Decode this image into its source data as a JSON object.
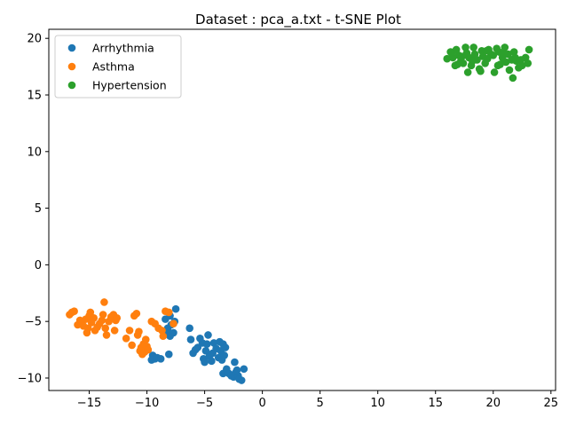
{
  "chart_data": {
    "type": "scatter",
    "title": "Dataset : pca_a.txt - t-SNE Plot",
    "xlabel": "",
    "ylabel": "",
    "xlim": [
      -18.5,
      25.4
    ],
    "ylim": [
      -11.1,
      20.8
    ],
    "xticks": [
      -15,
      -10,
      -5,
      0,
      5,
      10,
      15,
      20,
      25
    ],
    "yticks": [
      -10,
      -5,
      0,
      5,
      10,
      15,
      20
    ],
    "grid": false,
    "legend_position": "upper-left",
    "series": [
      {
        "name": "Arrhythmia",
        "color": "#1f77b4",
        "points": [
          [
            -9.5,
            -8.0
          ],
          [
            -9.3,
            -8.3
          ],
          [
            -9.6,
            -8.4
          ],
          [
            -9.1,
            -8.2
          ],
          [
            -8.8,
            -8.3
          ],
          [
            -8.1,
            -7.9
          ],
          [
            -8.4,
            -4.8
          ],
          [
            -8.0,
            -4.5
          ],
          [
            -7.9,
            -5.3
          ],
          [
            -7.6,
            -5.0
          ],
          [
            -7.5,
            -3.9
          ],
          [
            -8.2,
            -5.6
          ],
          [
            -7.7,
            -6.0
          ],
          [
            -8.0,
            -6.3
          ],
          [
            -7.9,
            -6.1
          ],
          [
            -8.3,
            -6.0
          ],
          [
            -6.3,
            -5.6
          ],
          [
            -6.2,
            -6.6
          ],
          [
            -6.0,
            -7.8
          ],
          [
            -5.8,
            -7.5
          ],
          [
            -5.6,
            -7.3
          ],
          [
            -5.4,
            -6.5
          ],
          [
            -5.2,
            -6.9
          ],
          [
            -5.1,
            -8.3
          ],
          [
            -5.0,
            -8.6
          ],
          [
            -4.9,
            -7.6
          ],
          [
            -4.8,
            -7.0
          ],
          [
            -4.7,
            -6.2
          ],
          [
            -4.6,
            -8.1
          ],
          [
            -4.4,
            -8.5
          ],
          [
            -4.3,
            -7.8
          ],
          [
            -4.2,
            -6.9
          ],
          [
            -4.0,
            -7.4
          ],
          [
            -3.8,
            -8.2
          ],
          [
            -3.7,
            -6.8
          ],
          [
            -3.6,
            -7.6
          ],
          [
            -3.5,
            -8.4
          ],
          [
            -3.4,
            -7.0
          ],
          [
            -3.3,
            -8.0
          ],
          [
            -3.2,
            -7.3
          ],
          [
            -3.4,
            -9.6
          ],
          [
            -3.1,
            -9.2
          ],
          [
            -2.9,
            -9.6
          ],
          [
            -2.7,
            -9.8
          ],
          [
            -2.5,
            -9.9
          ],
          [
            -2.4,
            -8.6
          ],
          [
            -2.3,
            -9.5
          ],
          [
            -2.1,
            -9.8
          ],
          [
            -2.0,
            -10.1
          ],
          [
            -1.8,
            -10.2
          ],
          [
            -1.6,
            -9.2
          ],
          [
            -2.2,
            -9.3
          ]
        ]
      },
      {
        "name": "Asthma",
        "color": "#ff7f0e",
        "points": [
          [
            -16.7,
            -4.4
          ],
          [
            -16.5,
            -4.2
          ],
          [
            -16.3,
            -4.1
          ],
          [
            -16.0,
            -5.3
          ],
          [
            -15.8,
            -4.9
          ],
          [
            -15.6,
            -5.0
          ],
          [
            -15.5,
            -5.4
          ],
          [
            -15.3,
            -4.8
          ],
          [
            -15.2,
            -6.0
          ],
          [
            -15.1,
            -5.6
          ],
          [
            -15.0,
            -4.5
          ],
          [
            -14.9,
            -4.2
          ],
          [
            -14.8,
            -5.1
          ],
          [
            -14.6,
            -4.7
          ],
          [
            -14.5,
            -5.8
          ],
          [
            -14.3,
            -5.5
          ],
          [
            -14.1,
            -5.2
          ],
          [
            -13.9,
            -4.9
          ],
          [
            -13.8,
            -4.4
          ],
          [
            -13.7,
            -3.3
          ],
          [
            -13.6,
            -5.6
          ],
          [
            -13.5,
            -6.2
          ],
          [
            -13.3,
            -5.0
          ],
          [
            -13.1,
            -4.6
          ],
          [
            -12.9,
            -4.4
          ],
          [
            -12.8,
            -5.8
          ],
          [
            -12.7,
            -4.9
          ],
          [
            -12.6,
            -4.7
          ],
          [
            -11.8,
            -6.5
          ],
          [
            -11.5,
            -5.8
          ],
          [
            -11.3,
            -7.1
          ],
          [
            -11.1,
            -4.5
          ],
          [
            -10.9,
            -4.3
          ],
          [
            -10.8,
            -6.2
          ],
          [
            -10.7,
            -5.9
          ],
          [
            -10.6,
            -7.6
          ],
          [
            -10.5,
            -7.3
          ],
          [
            -10.4,
            -7.9
          ],
          [
            -10.3,
            -7.0
          ],
          [
            -10.2,
            -7.7
          ],
          [
            -10.1,
            -6.6
          ],
          [
            -10.0,
            -7.2
          ],
          [
            -9.9,
            -7.5
          ],
          [
            -9.6,
            -5.0
          ],
          [
            -9.3,
            -5.2
          ],
          [
            -9.0,
            -5.6
          ],
          [
            -8.7,
            -5.8
          ],
          [
            -8.6,
            -6.3
          ],
          [
            -8.4,
            -4.1
          ],
          [
            -8.1,
            -4.2
          ],
          [
            -7.7,
            -5.2
          ]
        ]
      },
      {
        "name": "Hypertension",
        "color": "#2ca02c",
        "points": [
          [
            16.0,
            18.2
          ],
          [
            16.3,
            18.8
          ],
          [
            16.5,
            18.3
          ],
          [
            16.7,
            17.6
          ],
          [
            16.8,
            19.0
          ],
          [
            17.0,
            18.5
          ],
          [
            17.2,
            18.0
          ],
          [
            17.4,
            17.8
          ],
          [
            17.6,
            19.2
          ],
          [
            17.7,
            18.7
          ],
          [
            17.8,
            17.0
          ],
          [
            17.9,
            18.3
          ],
          [
            18.1,
            17.6
          ],
          [
            18.3,
            19.2
          ],
          [
            18.4,
            18.6
          ],
          [
            18.6,
            18.1
          ],
          [
            18.8,
            17.3
          ],
          [
            19.0,
            18.9
          ],
          [
            19.1,
            18.4
          ],
          [
            19.3,
            17.8
          ],
          [
            19.5,
            18.2
          ],
          [
            19.6,
            19.0
          ],
          [
            19.8,
            18.6
          ],
          [
            20.0,
            18.5
          ],
          [
            20.1,
            17.0
          ],
          [
            20.3,
            19.1
          ],
          [
            20.5,
            18.8
          ],
          [
            20.6,
            17.7
          ],
          [
            20.8,
            18.3
          ],
          [
            21.0,
            19.2
          ],
          [
            21.1,
            17.9
          ],
          [
            21.3,
            18.6
          ],
          [
            21.4,
            17.2
          ],
          [
            21.6,
            18.1
          ],
          [
            21.7,
            16.5
          ],
          [
            21.8,
            18.8
          ],
          [
            22.0,
            18.0
          ],
          [
            22.2,
            17.4
          ],
          [
            22.5,
            17.6
          ],
          [
            22.8,
            18.3
          ],
          [
            23.0,
            17.8
          ],
          [
            23.1,
            19.0
          ],
          [
            16.9,
            17.7
          ],
          [
            18.9,
            17.1
          ],
          [
            20.4,
            17.6
          ],
          [
            21.9,
            18.3
          ],
          [
            17.3,
            18.4
          ],
          [
            19.4,
            18.9
          ],
          [
            20.9,
            18.7
          ],
          [
            22.4,
            18.1
          ],
          [
            18.2,
            18.0
          ],
          [
            16.4,
            18.7
          ]
        ]
      }
    ]
  }
}
